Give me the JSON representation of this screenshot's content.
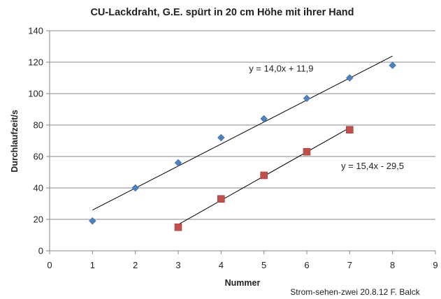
{
  "chart_data": {
    "type": "scatter",
    "title": "CU-Lackdraht, G.E. spürt in 20 cm Höhe mit ihrer Hand",
    "xlabel": "Nummer",
    "ylabel": "Durchlaufzeit/s",
    "xlim": [
      0,
      9
    ],
    "ylim": [
      0,
      140
    ],
    "xticks": [
      "0",
      "1",
      "2",
      "3",
      "4",
      "5",
      "6",
      "7",
      "8",
      "9"
    ],
    "yticks": [
      "0",
      "20",
      "40",
      "60",
      "80",
      "100",
      "120",
      "140"
    ],
    "grid": "horizontal",
    "series": [
      {
        "marker": "diamond",
        "color": "#4f81bd",
        "x": [
          1,
          2,
          3,
          4,
          5,
          6,
          7,
          8
        ],
        "y": [
          19,
          40,
          56,
          72,
          84,
          97,
          110,
          118
        ],
        "trendline": {
          "slope": 14.0,
          "intercept": 11.9,
          "x_range": [
            1,
            8
          ],
          "label": "y = 14,0x + 11,9"
        }
      },
      {
        "marker": "square",
        "color": "#c0504d",
        "x": [
          3,
          4,
          5,
          6,
          7
        ],
        "y": [
          15,
          33,
          48,
          63,
          77
        ],
        "trendline": {
          "slope": 15.4,
          "intercept": -29.5,
          "x_range": [
            3,
            7
          ],
          "label": "y = 15,4x - 29,5"
        }
      }
    ],
    "annotation": "Strom-sehen-zwei 20.8.12 F. Balck"
  }
}
